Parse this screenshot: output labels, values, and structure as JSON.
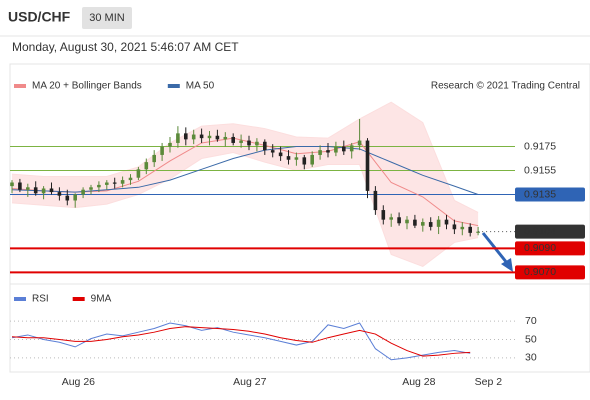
{
  "chart_data": {
    "type": "candlestick",
    "title": "USD/CHF",
    "timeframe": "30 MIN",
    "date": "Monday, August 30, 2021 5:46:07 AM CET",
    "source": "Research © 2021 Trading Central",
    "ylim": [
      0.9062,
      0.9218
    ],
    "up_color": "#5b8a3a",
    "down_color": "#222222",
    "ohlc": [
      [
        0.9142,
        0.9147,
        0.9136,
        0.9145
      ],
      [
        0.9145,
        0.9148,
        0.9137,
        0.9139
      ],
      [
        0.9139,
        0.9144,
        0.9133,
        0.9141
      ],
      [
        0.9141,
        0.9146,
        0.9134,
        0.9136
      ],
      [
        0.9136,
        0.9142,
        0.9131,
        0.914
      ],
      [
        0.914,
        0.9145,
        0.9135,
        0.9137
      ],
      [
        0.9137,
        0.9141,
        0.913,
        0.9134
      ],
      [
        0.9134,
        0.9139,
        0.9126,
        0.913
      ],
      [
        0.913,
        0.9136,
        0.9124,
        0.9135
      ],
      [
        0.9135,
        0.9141,
        0.9132,
        0.9139
      ],
      [
        0.9139,
        0.9143,
        0.9135,
        0.9141
      ],
      [
        0.9141,
        0.9146,
        0.9137,
        0.9143
      ],
      [
        0.9143,
        0.9147,
        0.9139,
        0.9145
      ],
      [
        0.9145,
        0.9149,
        0.914,
        0.9144
      ],
      [
        0.9144,
        0.915,
        0.9141,
        0.9147
      ],
      [
        0.9147,
        0.9152,
        0.9143,
        0.9149
      ],
      [
        0.9149,
        0.9158,
        0.9147,
        0.9156
      ],
      [
        0.9156,
        0.9165,
        0.9152,
        0.9162
      ],
      [
        0.9162,
        0.9172,
        0.9158,
        0.9168
      ],
      [
        0.9168,
        0.9178,
        0.9163,
        0.9175
      ],
      [
        0.9175,
        0.9183,
        0.917,
        0.9178
      ],
      [
        0.9178,
        0.9192,
        0.9174,
        0.9186
      ],
      [
        0.9186,
        0.9191,
        0.9176,
        0.9181
      ],
      [
        0.9181,
        0.9189,
        0.9177,
        0.9185
      ],
      [
        0.9185,
        0.919,
        0.9178,
        0.9182
      ],
      [
        0.9182,
        0.9188,
        0.9176,
        0.9184
      ],
      [
        0.9184,
        0.9189,
        0.9179,
        0.9181
      ],
      [
        0.9181,
        0.9187,
        0.9175,
        0.9183
      ],
      [
        0.9183,
        0.9186,
        0.9176,
        0.9178
      ],
      [
        0.9178,
        0.9185,
        0.9174,
        0.918
      ],
      [
        0.918,
        0.9184,
        0.9172,
        0.9176
      ],
      [
        0.9176,
        0.9182,
        0.9171,
        0.9179
      ],
      [
        0.9179,
        0.9181,
        0.9168,
        0.9172
      ],
      [
        0.9172,
        0.9177,
        0.9166,
        0.917
      ],
      [
        0.917,
        0.9175,
        0.9163,
        0.9167
      ],
      [
        0.9167,
        0.9172,
        0.916,
        0.9164
      ],
      [
        0.9164,
        0.917,
        0.9159,
        0.9166
      ],
      [
        0.9166,
        0.9168,
        0.9156,
        0.916
      ],
      [
        0.916,
        0.9171,
        0.9158,
        0.9168
      ],
      [
        0.9168,
        0.9176,
        0.9164,
        0.9172
      ],
      [
        0.9172,
        0.9178,
        0.9166,
        0.917
      ],
      [
        0.917,
        0.9179,
        0.9167,
        0.9175
      ],
      [
        0.9175,
        0.918,
        0.9168,
        0.9171
      ],
      [
        0.9171,
        0.9178,
        0.9165,
        0.9176
      ],
      [
        0.9176,
        0.9198,
        0.9172,
        0.918
      ],
      [
        0.918,
        0.9182,
        0.9132,
        0.9138
      ],
      [
        0.9138,
        0.9142,
        0.9118,
        0.9122
      ],
      [
        0.9122,
        0.9126,
        0.911,
        0.9114
      ],
      [
        0.9114,
        0.9119,
        0.9108,
        0.9116
      ],
      [
        0.9116,
        0.912,
        0.9109,
        0.9111
      ],
      [
        0.9111,
        0.9117,
        0.9106,
        0.9114
      ],
      [
        0.9114,
        0.9118,
        0.9107,
        0.9109
      ],
      [
        0.9109,
        0.9115,
        0.9104,
        0.9112
      ],
      [
        0.9112,
        0.9116,
        0.9105,
        0.9108
      ],
      [
        0.9108,
        0.9117,
        0.9102,
        0.9114
      ],
      [
        0.9114,
        0.9118,
        0.9106,
        0.911
      ],
      [
        0.911,
        0.9114,
        0.9102,
        0.9106
      ],
      [
        0.9106,
        0.9112,
        0.9101,
        0.9108
      ],
      [
        0.9108,
        0.9111,
        0.91,
        0.9103
      ],
      [
        0.9103,
        0.9108,
        0.9101,
        0.9104
      ]
    ],
    "indicator_x": [
      0,
      4,
      8,
      12,
      16,
      20,
      24,
      28,
      32,
      36,
      40,
      44,
      48,
      52,
      56,
      59
    ],
    "indicators": [
      {
        "name": "MA 20 + Bollinger Bands",
        "color": "#f08a8a",
        "fill": "#fcdede",
        "values": [
          0.914,
          0.9138,
          0.9137,
          0.9138,
          0.9146,
          0.9163,
          0.9178,
          0.9182,
          0.9176,
          0.9169,
          0.9171,
          0.9179,
          0.9145,
          0.9133,
          0.9113,
          0.9109
        ],
        "upper": [
          0.9152,
          0.915,
          0.915,
          0.915,
          0.9158,
          0.9178,
          0.9192,
          0.9194,
          0.919,
          0.9183,
          0.9182,
          0.9198,
          0.9212,
          0.9195,
          0.913,
          0.912
        ],
        "lower": [
          0.9128,
          0.9126,
          0.9124,
          0.9127,
          0.9135,
          0.9148,
          0.9165,
          0.917,
          0.9162,
          0.9155,
          0.916,
          0.916,
          0.9085,
          0.9075,
          0.9095,
          0.9099
        ]
      },
      {
        "name": "MA 50",
        "color": "#3b6aa8",
        "values": [
          0.9139,
          0.9138,
          0.9137,
          0.9139,
          0.9141,
          0.9147,
          0.9156,
          0.9165,
          0.9172,
          0.9175,
          0.9175,
          0.9173,
          0.9162,
          0.9151,
          0.9142,
          0.9135
        ]
      }
    ],
    "levels": [
      {
        "value": 0.9175,
        "color": "#7cb342",
        "box": false
      },
      {
        "value": 0.9155,
        "color": "#7cb342",
        "box": false
      },
      {
        "value": 0.9135,
        "color": "#2f64b5",
        "box": true
      },
      {
        "value": {
          "value": 0.909,
          "label": "0.9090"
        },
        "color": "#e00000",
        "box": true
      },
      {
        "value": {
          "value": 0.907,
          "label": "0.9070"
        },
        "color": "#e00000",
        "box": true
      }
    ],
    "last_price": 0.9104,
    "last_price_color": "#333333",
    "xlabels": [
      {
        "label": "Aug 26",
        "index": 8.4
      },
      {
        "label": "Aug 27",
        "index": 30.1
      },
      {
        "label": "Aug 28",
        "index": 51.5
      },
      {
        "label": "Sep 2",
        "index": 60.3
      }
    ],
    "rsi": {
      "ylim": [
        19,
        80
      ],
      "yticks": [
        70,
        50,
        30
      ],
      "x": [
        0,
        2,
        4,
        6,
        8,
        10,
        12,
        14,
        16,
        18,
        20,
        22,
        24,
        26,
        28,
        30,
        32,
        34,
        36,
        38,
        40,
        42,
        44,
        46,
        48,
        50,
        52,
        54,
        56,
        58
      ],
      "series": [
        {
          "name": "RSI",
          "color": "#5b7fd6",
          "values": [
            52,
            55,
            50,
            47,
            42,
            51,
            56,
            54,
            58,
            62,
            68,
            65,
            60,
            63,
            58,
            55,
            52,
            48,
            44,
            48,
            66,
            62,
            68,
            40,
            28,
            30,
            33,
            36,
            38,
            35
          ]
        },
        {
          "name": "9MA",
          "color": "#e00000",
          "values": [
            53,
            52,
            52,
            50,
            48,
            48,
            50,
            53,
            55,
            58,
            62,
            64,
            63,
            62,
            61,
            59,
            56,
            52,
            49,
            47,
            52,
            56,
            60,
            56,
            46,
            38,
            32,
            33,
            35,
            36
          ]
        }
      ]
    }
  }
}
